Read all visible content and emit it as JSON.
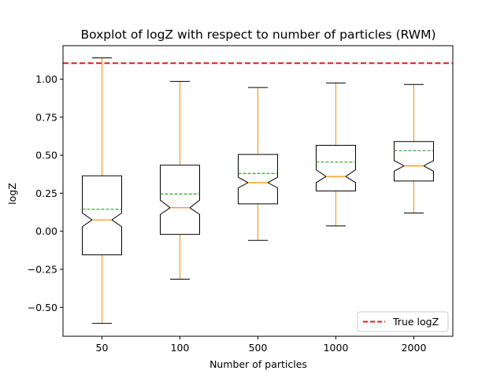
{
  "chart_data": {
    "type": "box",
    "title": "Boxplot of logZ with respect to number of particles (RWM)",
    "xlabel": "Number of particles",
    "ylabel": "logZ",
    "categories": [
      "50",
      "100",
      "500",
      "1000",
      "2000"
    ],
    "ylim": [
      -0.69,
      1.22
    ],
    "yticks": [
      -0.5,
      -0.25,
      0.0,
      0.25,
      0.5,
      0.75,
      1.0
    ],
    "ytick_labels": [
      "−0.50",
      "−0.25",
      "0.00",
      "0.25",
      "0.50",
      "0.75",
      "1.00"
    ],
    "notched": true,
    "show_means": true,
    "mean_line_style": "dashed",
    "boxes": [
      {
        "category": "50",
        "whisker_low": -0.605,
        "q1": -0.155,
        "median": 0.075,
        "q3": 0.365,
        "whisker_high": 1.14,
        "mean": 0.145,
        "notch_low": 0.03,
        "notch_high": 0.12
      },
      {
        "category": "100",
        "whisker_low": -0.315,
        "q1": -0.02,
        "median": 0.155,
        "q3": 0.435,
        "whisker_high": 0.985,
        "mean": 0.245,
        "notch_low": 0.11,
        "notch_high": 0.205
      },
      {
        "category": "500",
        "whisker_low": -0.06,
        "q1": 0.18,
        "median": 0.32,
        "q3": 0.505,
        "whisker_high": 0.945,
        "mean": 0.38,
        "notch_low": 0.285,
        "notch_high": 0.355
      },
      {
        "category": "1000",
        "whisker_low": 0.035,
        "q1": 0.265,
        "median": 0.36,
        "q3": 0.565,
        "whisker_high": 0.975,
        "mean": 0.455,
        "notch_low": 0.32,
        "notch_high": 0.405
      },
      {
        "category": "2000",
        "whisker_low": 0.12,
        "q1": 0.33,
        "median": 0.43,
        "q3": 0.59,
        "whisker_high": 0.965,
        "mean": 0.53,
        "notch_low": 0.395,
        "notch_high": 0.465
      }
    ],
    "reference_line": {
      "name": "True logZ",
      "value": 1.105,
      "color": "#e41a1c",
      "style": "dashed"
    },
    "legend": {
      "entries": [
        "True logZ"
      ],
      "placement": "lower-right"
    },
    "colors": {
      "box": "#000000",
      "whisker": "#ff8c00",
      "median": "#ff8c00",
      "mean": "#2ca02c",
      "reference": "#e41a1c"
    },
    "grid": false
  }
}
